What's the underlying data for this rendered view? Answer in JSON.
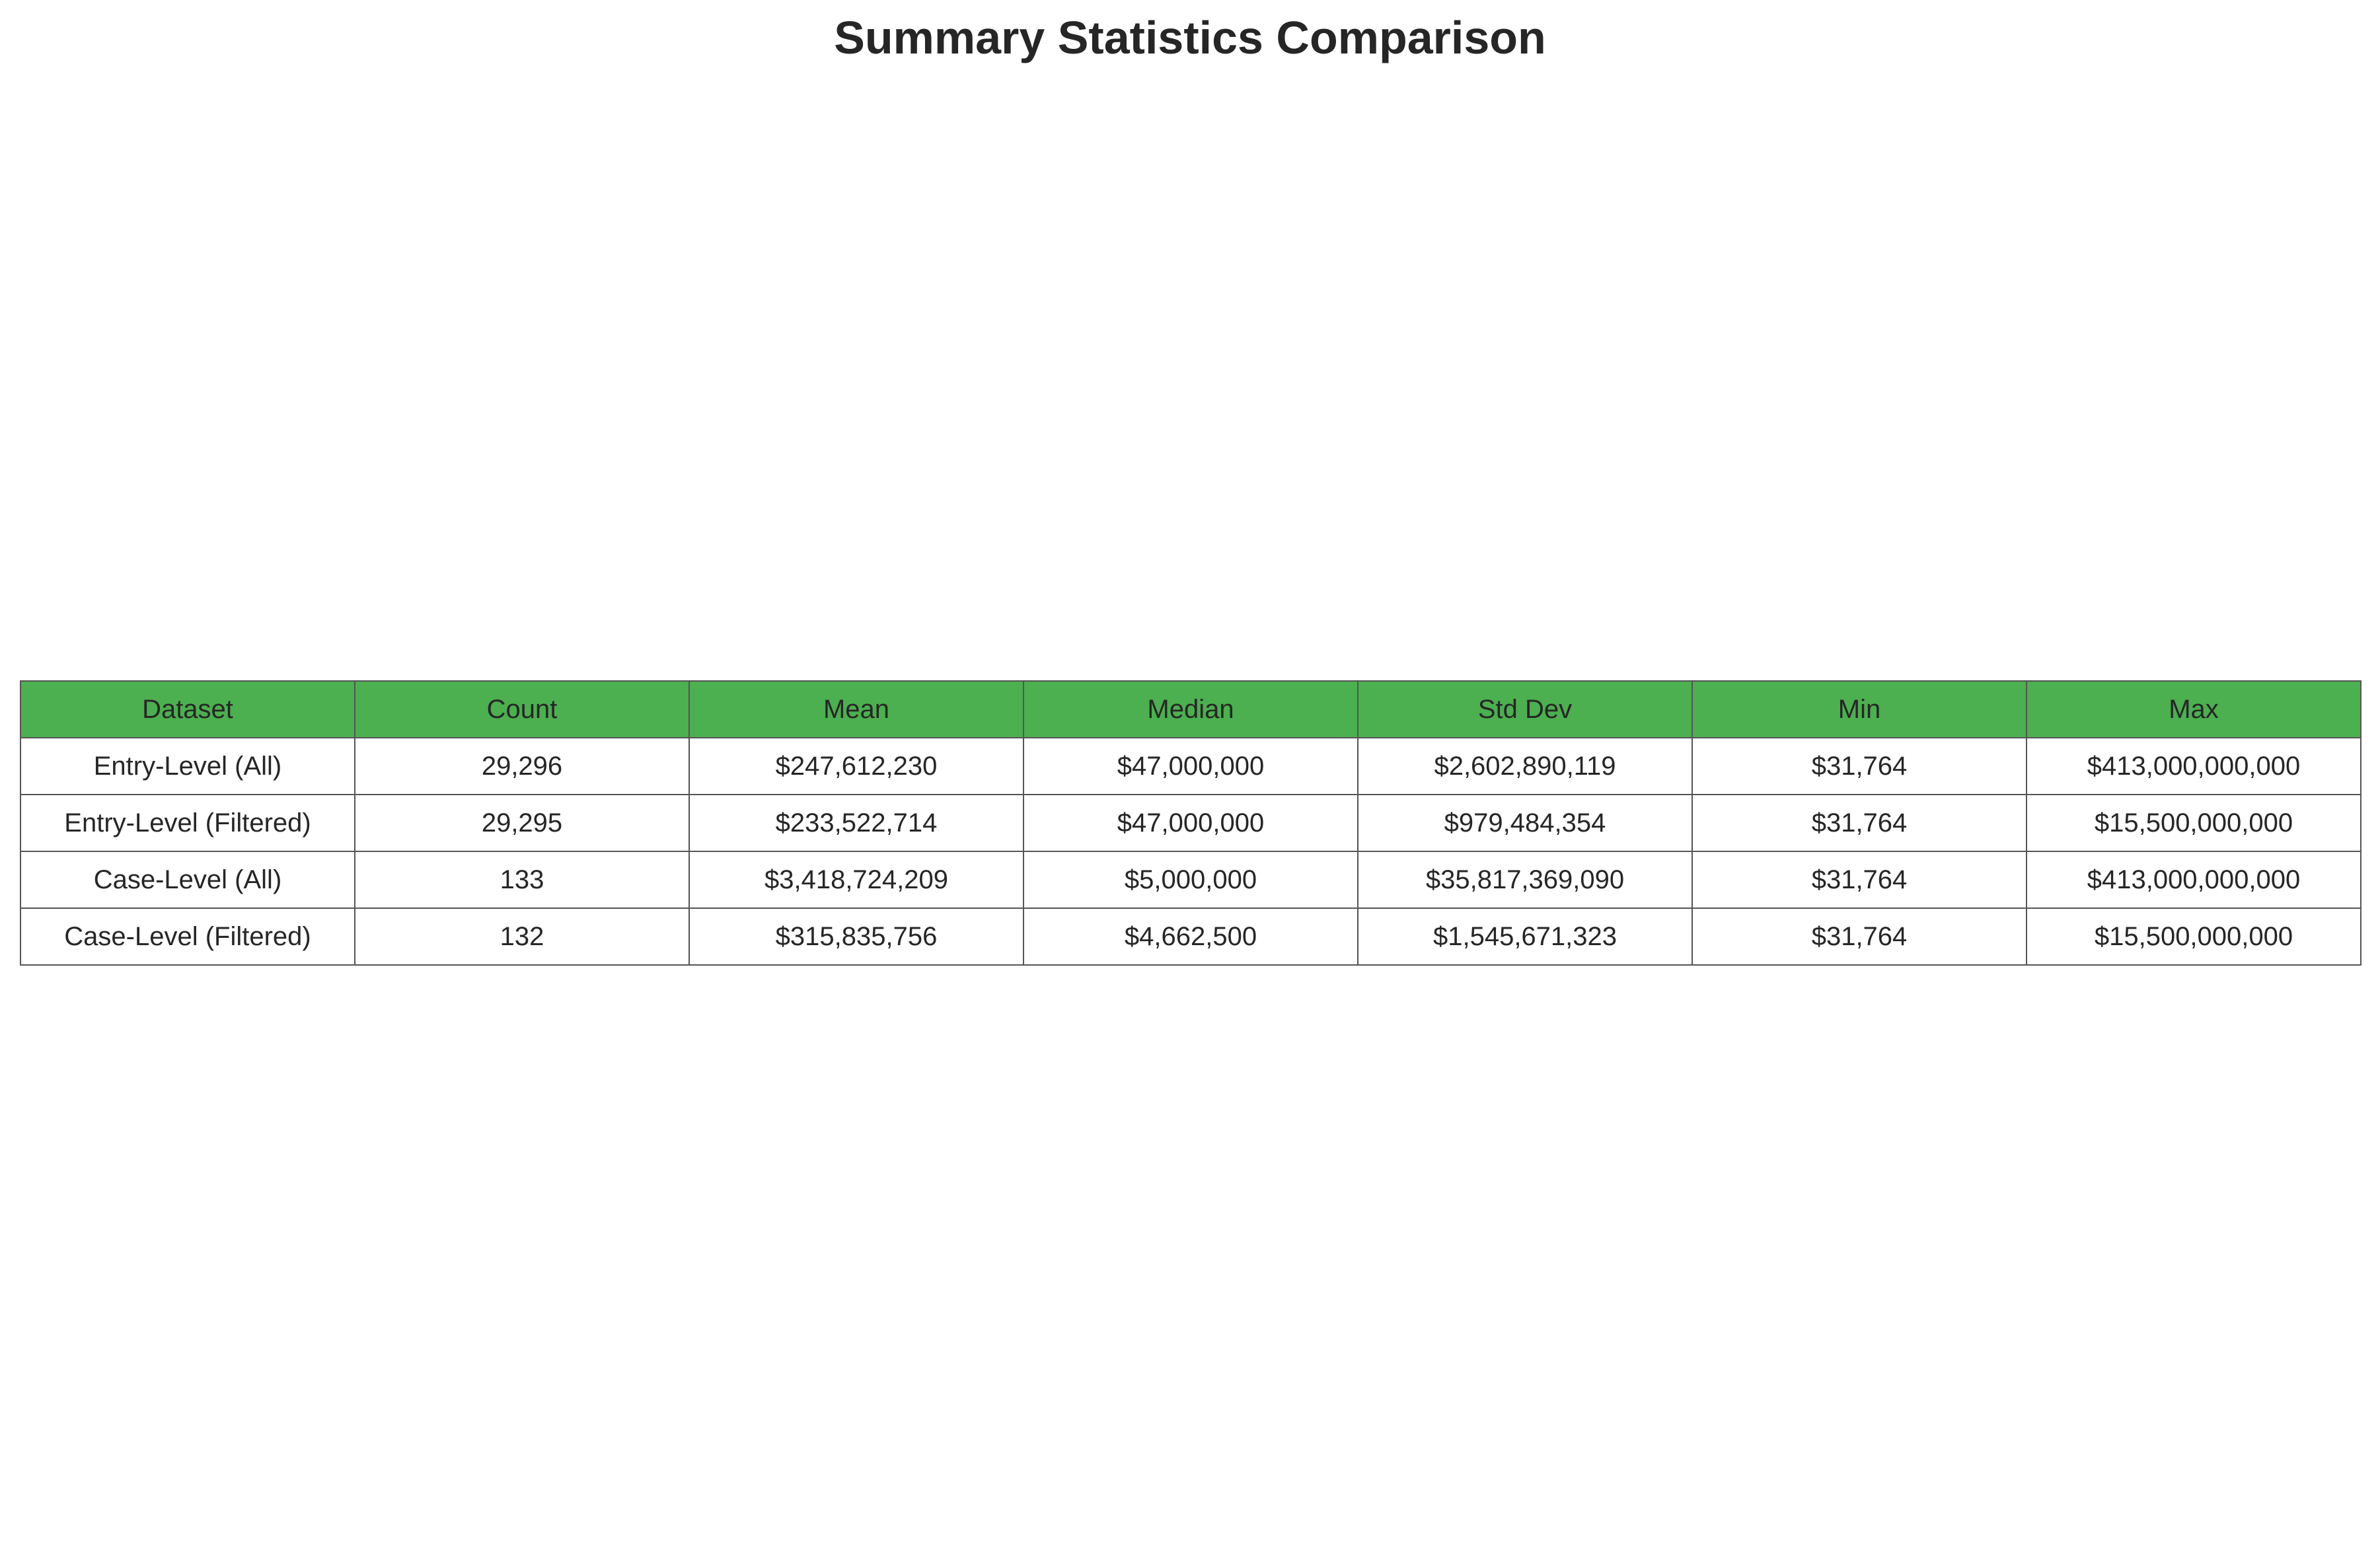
{
  "chart_data": {
    "type": "table",
    "title": "Summary Statistics Comparison",
    "header_color": "#4caf50",
    "columns": [
      "Dataset",
      "Count",
      "Mean",
      "Median",
      "Std Dev",
      "Min",
      "Max"
    ],
    "rows": [
      [
        "Entry-Level (All)",
        "29,296",
        "$247,612,230",
        "$47,000,000",
        "$2,602,890,119",
        "$31,764",
        "$413,000,000,000"
      ],
      [
        "Entry-Level (Filtered)",
        "29,295",
        "$233,522,714",
        "$47,000,000",
        "$979,484,354",
        "$31,764",
        "$15,500,000,000"
      ],
      [
        "Case-Level (All)",
        "133",
        "$3,418,724,209",
        "$5,000,000",
        "$35,817,369,090",
        "$31,764",
        "$413,000,000,000"
      ],
      [
        "Case-Level (Filtered)",
        "132",
        "$315,835,756",
        "$4,662,500",
        "$1,545,671,323",
        "$31,764",
        "$15,500,000,000"
      ]
    ]
  }
}
